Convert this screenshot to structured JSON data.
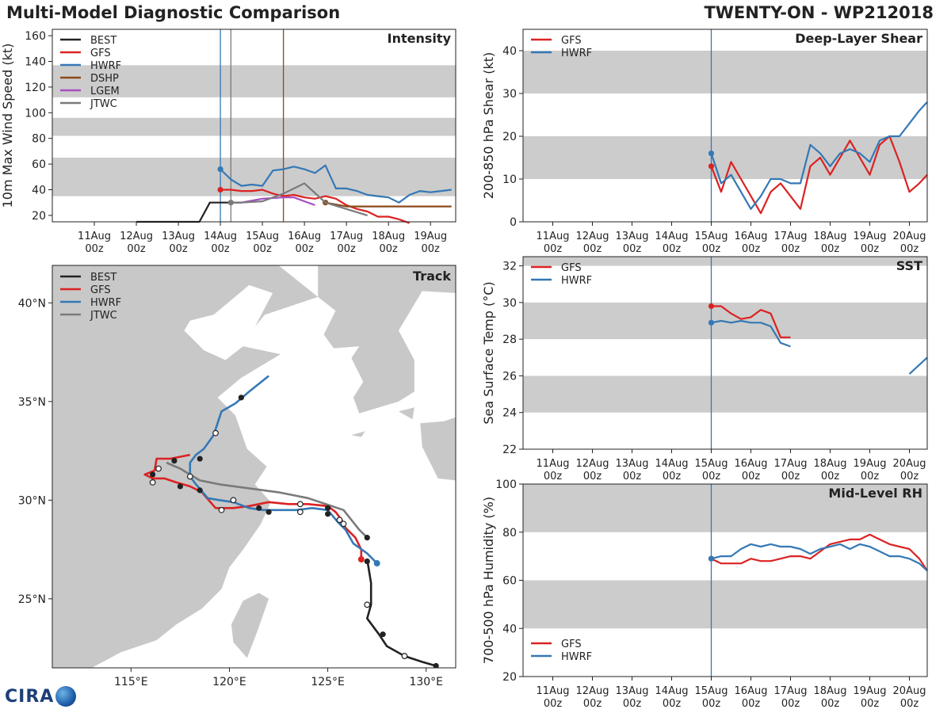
{
  "header": {
    "left_title": "Multi-Model Diagnostic Comparison",
    "right_title": "TWENTY-ON - WP212018"
  },
  "colors": {
    "BEST": "#222222",
    "GFS": "#dc2222",
    "HWRF": "#3478b5",
    "DSHP": "#8b4a1c",
    "LGEM": "#a64ec2",
    "JTWC": "#7a7a7a",
    "band": "#cccccc",
    "land": "#c8c8c8"
  },
  "chart_data": [
    {
      "id": "intensity",
      "type": "line",
      "title": "Intensity",
      "ylabel": "10m Max Wind Speed (kt)",
      "xlim": [
        0,
        9.6
      ],
      "ylim": [
        15,
        165
      ],
      "yticks": [
        20,
        40,
        60,
        80,
        100,
        120,
        140,
        160
      ],
      "bands": [
        [
          35,
          65
        ],
        [
          82,
          96
        ],
        [
          112,
          137
        ]
      ],
      "vlines": [
        {
          "x": 4.0,
          "color": "HWRF"
        },
        {
          "x": 4.25,
          "color": "JTWC"
        },
        {
          "x": 5.5,
          "color": "DSHP"
        }
      ],
      "legend": [
        "BEST",
        "GFS",
        "HWRF",
        "DSHP",
        "LGEM",
        "JTWC"
      ],
      "series": [
        {
          "name": "BEST",
          "x": [
            2.0,
            2.25,
            2.5,
            2.75,
            3.0,
            3.25,
            3.5,
            3.75,
            4.0,
            4.25,
            4.5
          ],
          "y": [
            15,
            15,
            15,
            15,
            15,
            15,
            15,
            30,
            30,
            30,
            30
          ]
        },
        {
          "name": "GFS",
          "x": [
            4.0,
            4.25,
            4.5,
            4.75,
            5.0,
            5.25,
            5.5,
            5.75,
            6.0,
            6.25,
            6.5,
            6.75,
            7.0,
            7.25,
            7.5,
            7.75,
            8.0,
            8.25,
            8.5
          ],
          "y": [
            40,
            40,
            39,
            39,
            40,
            37,
            35,
            36,
            34,
            33,
            35,
            33,
            28,
            25,
            23,
            19,
            19,
            17,
            14
          ],
          "start_marker": true
        },
        {
          "name": "HWRF",
          "x": [
            4.0,
            4.25,
            4.5,
            4.75,
            5.0,
            5.25,
            5.5,
            5.75,
            6.0,
            6.25,
            6.5,
            6.75,
            7.0,
            7.25,
            7.5,
            7.75,
            8.0,
            8.25,
            8.5,
            8.75,
            9.0,
            9.25,
            9.5
          ],
          "y": [
            56,
            48,
            43,
            44,
            43,
            55,
            56,
            58,
            56,
            53,
            59,
            41,
            41,
            39,
            36,
            35,
            34,
            30,
            36,
            39,
            38,
            39,
            40
          ],
          "start_marker": true
        },
        {
          "name": "DSHP",
          "x": [
            6.5,
            7.0,
            7.5,
            8.0,
            8.5,
            9.0,
            9.5
          ],
          "y": [
            30,
            27,
            27,
            27,
            27,
            27,
            27
          ],
          "start_marker": true
        },
        {
          "name": "LGEM",
          "x": [
            4.25,
            4.5,
            5.0,
            5.5,
            5.75,
            6.0,
            6.25
          ],
          "y": [
            30,
            30,
            33,
            34,
            34,
            31,
            28
          ]
        },
        {
          "name": "JTWC",
          "x": [
            4.25,
            4.5,
            5.0,
            5.5,
            6.0,
            6.5,
            7.0,
            7.5
          ],
          "y": [
            30,
            30,
            31,
            37,
            45,
            30,
            25,
            20
          ],
          "start_marker": true
        }
      ],
      "xticks": [
        {
          "x": 1,
          "label": "11Aug\n00z"
        },
        {
          "x": 2,
          "label": "12Aug\n00z"
        },
        {
          "x": 3,
          "label": "13Aug\n00z"
        },
        {
          "x": 4,
          "label": "14Aug\n00z"
        },
        {
          "x": 5,
          "label": "15Aug\n00z"
        },
        {
          "x": 6,
          "label": "16Aug\n00z"
        },
        {
          "x": 7,
          "label": "17Aug\n00z"
        },
        {
          "x": 8,
          "label": "18Aug\n00z"
        },
        {
          "x": 9,
          "label": "19Aug\n00z"
        },
        {
          "x": 10,
          "label": "20Aug\n00z"
        }
      ]
    },
    {
      "id": "shear",
      "type": "line",
      "title": "Deep-Layer Shear",
      "ylabel": "200-850 hPa Shear (kt)",
      "xlim": [
        0,
        10.2
      ],
      "ylim": [
        0,
        45
      ],
      "yticks": [
        0,
        10,
        20,
        30,
        40
      ],
      "bands": [
        [
          10,
          20
        ],
        [
          30,
          40
        ]
      ],
      "vlines": [
        {
          "x": 4.75,
          "color": "HWRF"
        }
      ],
      "legend": [
        "GFS",
        "HWRF"
      ],
      "series": [
        {
          "name": "GFS",
          "x": [
            4.75,
            5.0,
            5.25,
            5.5,
            5.75,
            6.0,
            6.25,
            6.5,
            6.75,
            7.0,
            7.25,
            7.5,
            7.75,
            8.0,
            8.25,
            8.5,
            8.75,
            9.0,
            9.25,
            9.5,
            9.75,
            10.0,
            10.2
          ],
          "y": [
            13,
            7,
            14,
            10,
            6,
            2,
            7,
            9,
            6,
            3,
            13,
            15,
            11,
            15,
            19,
            15,
            11,
            18,
            20,
            14,
            7,
            9,
            11
          ],
          "start_marker": true
        },
        {
          "name": "HWRF",
          "x": [
            4.75,
            5.0,
            5.25,
            5.5,
            5.75,
            6.0,
            6.25,
            6.5,
            6.75,
            7.0,
            7.25,
            7.5,
            7.75,
            8.0,
            8.25,
            8.5,
            8.75,
            9.0,
            9.25,
            9.5,
            9.75,
            10.0,
            10.2
          ],
          "y": [
            16,
            9,
            11,
            7,
            3,
            6,
            10,
            10,
            9,
            9,
            18,
            16,
            13,
            16,
            17,
            16,
            14,
            19,
            20,
            20,
            23,
            26,
            28
          ],
          "start_marker": true
        }
      ],
      "xticks": [
        {
          "x": 0.75,
          "label": "11Aug\n00z"
        },
        {
          "x": 1.75,
          "label": "12Aug\n00z"
        },
        {
          "x": 2.75,
          "label": "13Aug\n00z"
        },
        {
          "x": 3.75,
          "label": "14Aug\n00z"
        },
        {
          "x": 4.75,
          "label": "15Aug\n00z"
        },
        {
          "x": 5.75,
          "label": "16Aug\n00z"
        },
        {
          "x": 6.75,
          "label": "17Aug\n00z"
        },
        {
          "x": 7.75,
          "label": "18Aug\n00z"
        },
        {
          "x": 8.75,
          "label": "19Aug\n00z"
        },
        {
          "x": 9.75,
          "label": "20Aug\n00z"
        }
      ]
    },
    {
      "id": "sst",
      "type": "line",
      "title": "SST",
      "ylabel": "Sea Surface Temp (°C)",
      "xlim": [
        0,
        10.2
      ],
      "ylim": [
        22,
        32.5
      ],
      "yticks": [
        22,
        24,
        26,
        28,
        30,
        32
      ],
      "bands": [
        [
          24,
          26
        ],
        [
          28,
          30
        ],
        [
          32,
          32.5
        ]
      ],
      "vlines": [
        {
          "x": 4.75,
          "color": "HWRF"
        }
      ],
      "legend": [
        "GFS",
        "HWRF"
      ],
      "series": [
        {
          "name": "GFS",
          "x": [
            4.75,
            5.0,
            5.25,
            5.5,
            5.75,
            6.0,
            6.25,
            6.5,
            6.75
          ],
          "y": [
            29.8,
            29.8,
            29.4,
            29.1,
            29.2,
            29.6,
            29.4,
            28.1,
            28.1
          ],
          "start_marker": true
        },
        {
          "name": "HWRF",
          "x": [
            4.75,
            5.0,
            5.25,
            5.5,
            5.75,
            6.0,
            6.25,
            6.5,
            6.75
          ],
          "y": [
            28.9,
            29.0,
            28.9,
            29.0,
            28.9,
            28.9,
            28.7,
            27.8,
            27.6
          ],
          "start_marker": true
        },
        {
          "name": "HWRF",
          "x": [
            9.75,
            10.2
          ],
          "y": [
            26.1,
            27.0
          ]
        }
      ],
      "xticks": [
        {
          "x": 0.75,
          "label": "11Aug\n00z"
        },
        {
          "x": 1.75,
          "label": "12Aug\n00z"
        },
        {
          "x": 2.75,
          "label": "13Aug\n00z"
        },
        {
          "x": 3.75,
          "label": "14Aug\n00z"
        },
        {
          "x": 4.75,
          "label": "15Aug\n00z"
        },
        {
          "x": 5.75,
          "label": "16Aug\n00z"
        },
        {
          "x": 6.75,
          "label": "17Aug\n00z"
        },
        {
          "x": 7.75,
          "label": "18Aug\n00z"
        },
        {
          "x": 8.75,
          "label": "19Aug\n00z"
        },
        {
          "x": 9.75,
          "label": "20Aug\n00z"
        }
      ]
    },
    {
      "id": "rh",
      "type": "line",
      "title": "Mid-Level RH",
      "ylabel": "700-500 hPa Humidity (%)",
      "xlim": [
        0,
        10.2
      ],
      "ylim": [
        20,
        100
      ],
      "yticks": [
        20,
        40,
        60,
        80,
        100
      ],
      "bands": [
        [
          40,
          60
        ],
        [
          80,
          100
        ]
      ],
      "vlines": [
        {
          "x": 4.75,
          "color": "HWRF"
        }
      ],
      "legend": [
        "GFS",
        "HWRF"
      ],
      "legend_position": "bottom-left",
      "series": [
        {
          "name": "GFS",
          "x": [
            4.75,
            5.0,
            5.25,
            5.5,
            5.75,
            6.0,
            6.25,
            6.5,
            6.75,
            7.0,
            7.25,
            7.5,
            7.75,
            8.0,
            8.25,
            8.5,
            8.75,
            9.0,
            9.25,
            9.5,
            9.75,
            10.0,
            10.2
          ],
          "y": [
            69,
            67,
            67,
            67,
            69,
            68,
            68,
            69,
            70,
            70,
            69,
            72,
            75,
            76,
            77,
            77,
            79,
            77,
            75,
            74,
            73,
            69,
            64
          ],
          "start_marker": true
        },
        {
          "name": "HWRF",
          "x": [
            4.75,
            5.0,
            5.25,
            5.5,
            5.75,
            6.0,
            6.25,
            6.5,
            6.75,
            7.0,
            7.25,
            7.5,
            7.75,
            8.0,
            8.25,
            8.5,
            8.75,
            9.0,
            9.25,
            9.5,
            9.75,
            10.0,
            10.2
          ],
          "y": [
            69,
            70,
            70,
            73,
            75,
            74,
            75,
            74,
            74,
            73,
            71,
            73,
            74,
            75,
            73,
            75,
            74,
            72,
            70,
            70,
            69,
            67,
            64
          ],
          "start_marker": true
        }
      ],
      "xticks": [
        {
          "x": 0.75,
          "label": "11Aug\n00z"
        },
        {
          "x": 1.75,
          "label": "12Aug\n00z"
        },
        {
          "x": 2.75,
          "label": "13Aug\n00z"
        },
        {
          "x": 3.75,
          "label": "14Aug\n00z"
        },
        {
          "x": 4.75,
          "label": "15Aug\n00z"
        },
        {
          "x": 5.75,
          "label": "16Aug\n00z"
        },
        {
          "x": 6.75,
          "label": "17Aug\n00z"
        },
        {
          "x": 7.75,
          "label": "18Aug\n00z"
        },
        {
          "x": 8.75,
          "label": "19Aug\n00z"
        },
        {
          "x": 9.75,
          "label": "20Aug\n00z"
        }
      ]
    },
    {
      "id": "track",
      "type": "scatter",
      "title": "Track",
      "xlim": [
        111.0,
        131.5
      ],
      "ylim": [
        21.5,
        41.9
      ],
      "xticks": [
        {
          "v": 115,
          "label": "115°E"
        },
        {
          "v": 120,
          "label": "120°E"
        },
        {
          "v": 125,
          "label": "125°E"
        },
        {
          "v": 130,
          "label": "130°E"
        }
      ],
      "yticks": [
        {
          "v": 25,
          "label": "25°N"
        },
        {
          "v": 30,
          "label": "30°N"
        },
        {
          "v": 35,
          "label": "35°N"
        },
        {
          "v": 40,
          "label": "40°N"
        }
      ],
      "legend": [
        "BEST",
        "GFS",
        "HWRF",
        "JTWC"
      ],
      "series": [
        {
          "name": "BEST",
          "lon": [
            130.5,
            129.8,
            128.9,
            128.0,
            127.6,
            127.0,
            127.2,
            127.2,
            127.0
          ],
          "lat": [
            21.6,
            21.8,
            22.1,
            22.6,
            23.2,
            24.0,
            24.7,
            25.8,
            27.0
          ]
        },
        {
          "name": "GFS",
          "lon": [
            126.7,
            126.7,
            126.4,
            125.9,
            125.7,
            125.4,
            125.0,
            124.0,
            123.0,
            122.0,
            121.0,
            120.2,
            119.3,
            118.6,
            118.0,
            117.3,
            116.7,
            116.1,
            115.7,
            116.2,
            116.3,
            117.0,
            118.0
          ],
          "lat": [
            27.0,
            27.5,
            28.1,
            28.6,
            29.0,
            29.4,
            29.7,
            29.8,
            29.8,
            29.9,
            29.7,
            29.6,
            29.6,
            30.4,
            30.7,
            30.9,
            31.1,
            31.1,
            31.3,
            31.5,
            32.1,
            32.1,
            32.3
          ],
          "end_marker": true
        },
        {
          "name": "HWRF",
          "lon": [
            127.5,
            127.0,
            126.3,
            125.9,
            125.5,
            125.0,
            124.2,
            123.4,
            122.5,
            121.7,
            121.0,
            120.2,
            119.5,
            118.9,
            118.3,
            118.0,
            118.0,
            118.3,
            118.7,
            119.2,
            119.6,
            120.3,
            121.0,
            122.0
          ],
          "lat": [
            26.8,
            27.3,
            27.8,
            28.5,
            28.9,
            29.5,
            29.6,
            29.5,
            29.5,
            29.5,
            29.6,
            29.9,
            30.0,
            30.1,
            30.8,
            31.2,
            31.9,
            32.3,
            32.6,
            33.3,
            34.5,
            34.9,
            35.5,
            36.3
          ],
          "end_marker": true
        },
        {
          "name": "JTWC",
          "lon": [
            127.0,
            126.6,
            125.8,
            124.0,
            122.5,
            121.0,
            119.5,
            118.5,
            118.0,
            117.5,
            116.8
          ],
          "lat": [
            28.1,
            28.5,
            29.5,
            30.1,
            30.4,
            30.6,
            30.8,
            31.0,
            31.3,
            31.6,
            31.9
          ]
        }
      ],
      "markers_filled": [
        {
          "lon": 130.5,
          "lat": 21.6
        },
        {
          "lon": 127.8,
          "lat": 23.2
        },
        {
          "lon": 127.0,
          "lat": 26.9
        },
        {
          "lon": 125.0,
          "lat": 29.3
        },
        {
          "lon": 125.0,
          "lat": 29.6
        },
        {
          "lon": 122.0,
          "lat": 29.4
        },
        {
          "lon": 121.5,
          "lat": 29.6
        },
        {
          "lon": 118.5,
          "lat": 30.5
        },
        {
          "lon": 117.5,
          "lat": 30.7
        },
        {
          "lon": 116.1,
          "lat": 31.3
        },
        {
          "lon": 117.2,
          "lat": 32.0
        },
        {
          "lon": 118.5,
          "lat": 32.1
        },
        {
          "lon": 120.6,
          "lat": 35.2
        },
        {
          "lon": 127.0,
          "lat": 28.1
        }
      ],
      "markers_open": [
        {
          "lon": 128.9,
          "lat": 22.1
        },
        {
          "lon": 127.0,
          "lat": 24.7
        },
        {
          "lon": 125.8,
          "lat": 28.8
        },
        {
          "lon": 125.6,
          "lat": 29.0
        },
        {
          "lon": 123.6,
          "lat": 29.4
        },
        {
          "lon": 123.6,
          "lat": 29.8
        },
        {
          "lon": 120.2,
          "lat": 30.0
        },
        {
          "lon": 119.6,
          "lat": 29.5
        },
        {
          "lon": 116.1,
          "lat": 30.9
        },
        {
          "lon": 116.4,
          "lat": 31.6
        },
        {
          "lon": 118.0,
          "lat": 31.2
        },
        {
          "lon": 119.3,
          "lat": 33.4
        }
      ]
    }
  ],
  "logo": {
    "text": "CIRA"
  }
}
